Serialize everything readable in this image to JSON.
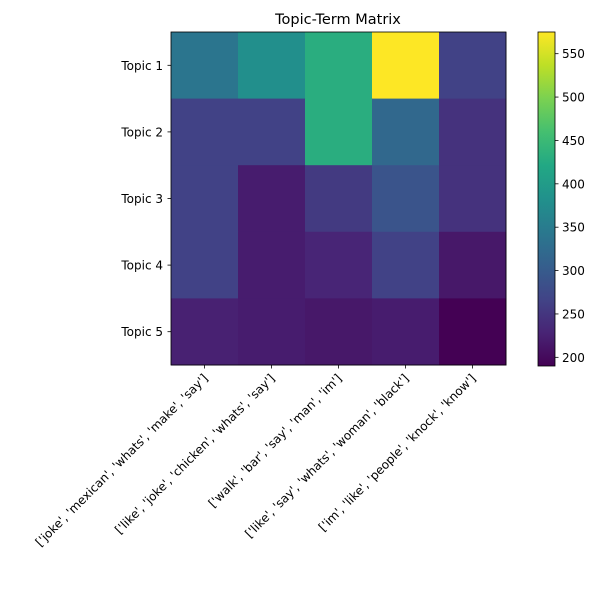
{
  "chart_data": {
    "type": "heatmap",
    "title": "Topic-Term Matrix",
    "xlabel": "",
    "ylabel": "",
    "rows": [
      "Topic 1",
      "Topic 2",
      "Topic 3",
      "Topic 4",
      "Topic 5"
    ],
    "columns": [
      "['joke', 'mexican', 'whats', 'make', 'say']",
      "['like', 'joke', 'chicken', 'whats', 'say']",
      "['walk', 'bar', 'say', 'man', 'im']",
      "['like', 'say', 'whats', 'woman', 'black']",
      "['im', 'like', 'people', 'knock', 'know']"
    ],
    "values": [
      [
        340,
        380,
        430,
        575,
        265
      ],
      [
        265,
        265,
        430,
        320,
        245
      ],
      [
        265,
        220,
        255,
        290,
        245
      ],
      [
        265,
        220,
        230,
        265,
        215
      ],
      [
        225,
        220,
        215,
        220,
        190
      ]
    ],
    "colormap": "viridis",
    "colorbar": {
      "min": 190,
      "max": 575,
      "ticks": [
        "200",
        "250",
        "300",
        "350",
        "400",
        "450",
        "500",
        "550"
      ]
    }
  }
}
